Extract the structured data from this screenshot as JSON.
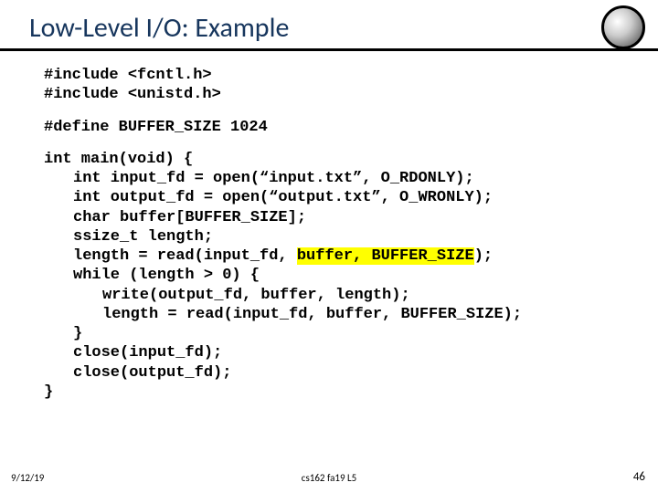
{
  "title": "Low-Level I/O: Example",
  "code": {
    "includes": [
      "#include <fcntl.h>",
      "#include <unistd.h>"
    ],
    "define": "#define BUFFER_SIZE 1024",
    "main_sig": "int main(void) {",
    "l1": "int input_fd = open(“input.txt”, O_RDONLY);",
    "l2": "int output_fd = open(“output.txt”, O_WRONLY);",
    "l3": "char buffer[BUFFER_SIZE];",
    "l4": "ssize_t length;",
    "l5a": "length = read(input_fd, ",
    "l5hl": "buffer, BUFFER_SIZE",
    "l5b": ");",
    "l6": "while (length > 0) {",
    "l7": "write(output_fd, buffer, length);",
    "l8": "length = read(input_fd, buffer, BUFFER_SIZE);",
    "l9": "}",
    "l10": "close(input_fd);",
    "l11": "close(output_fd);",
    "l12": "}"
  },
  "footer": {
    "date": "9/12/19",
    "center": "cs162 fa19 L5",
    "page": "46"
  },
  "colors": {
    "title": "#17365d",
    "highlight": "#ffff00",
    "underline": "#000000",
    "background": "#ffffff"
  }
}
